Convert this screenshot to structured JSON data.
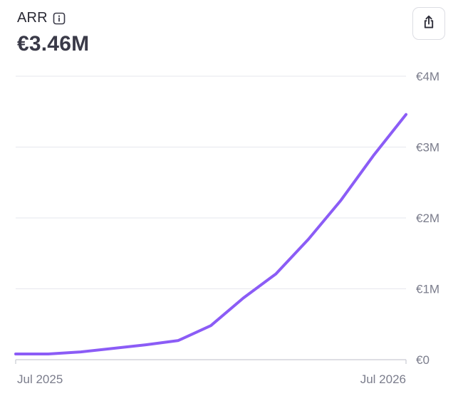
{
  "header": {
    "title": "ARR",
    "value": "€3.46M",
    "info_icon": "info-icon",
    "share_icon": "share-icon"
  },
  "colors": {
    "line": "#8b5cf6",
    "grid": "#e6e7ee",
    "axis": "#c9cad3",
    "tick_text": "#7b7d8c"
  },
  "chart_data": {
    "type": "line",
    "x": [
      "2025-07",
      "2025-08",
      "2025-09",
      "2025-10",
      "2025-11",
      "2025-12",
      "2026-01",
      "2026-02",
      "2026-03",
      "2026-04",
      "2026-05",
      "2026-06",
      "2026-07"
    ],
    "series": [
      {
        "values": [
          0.08,
          0.08,
          0.11,
          0.16,
          0.21,
          0.27,
          0.48,
          0.87,
          1.21,
          1.7,
          2.25,
          2.88,
          3.46
        ]
      }
    ],
    "y_ticks": [
      "€0",
      "€1M",
      "€2M",
      "€3M",
      "€4M"
    ],
    "x_ticks": [
      "Jul 2025",
      "Jul 2026"
    ],
    "ylim": [
      0,
      4
    ],
    "y_unit": "€M",
    "grid": "horizontal",
    "y_axis_side": "right"
  }
}
